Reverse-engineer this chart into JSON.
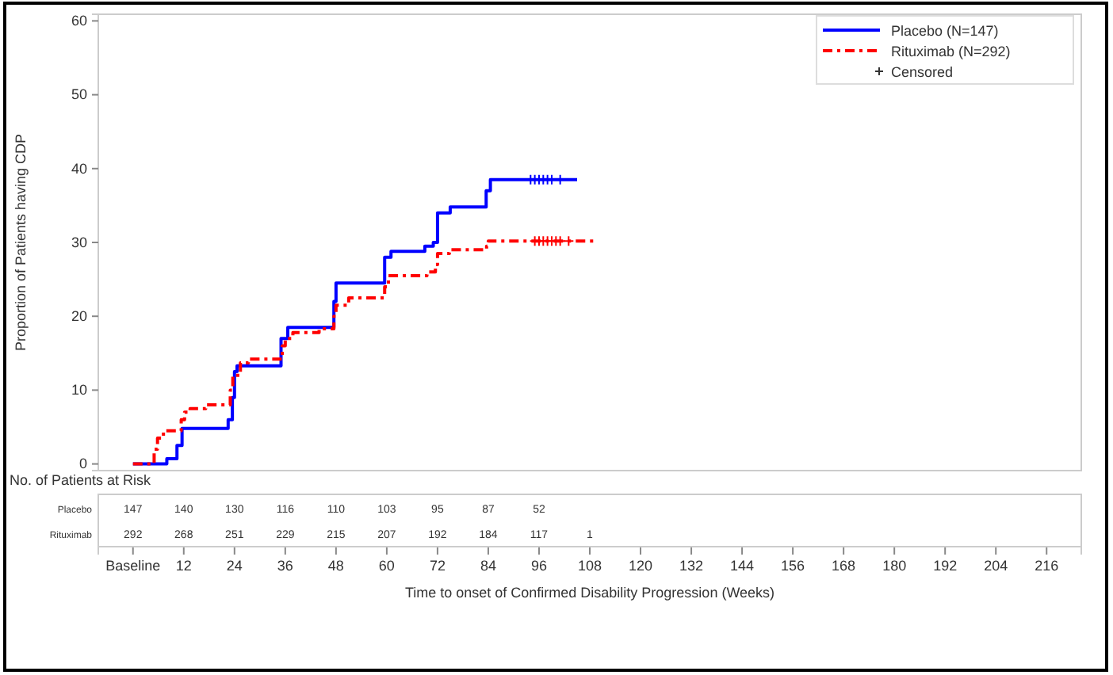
{
  "chart_data": [
    {
      "type": "step",
      "ylabel": "Proportion of Patients having CDP",
      "xlabel": "Time to onset of Confirmed Disability Progression (Weeks)",
      "xlim": [
        -8.2,
        224.2
      ],
      "xticks": [
        12,
        24,
        36,
        48,
        60,
        72,
        84,
        96,
        108,
        120,
        132,
        144,
        156,
        168,
        180,
        192,
        204,
        216
      ],
      "ylim": [
        -0.9,
        60.9
      ],
      "yticks": [
        0,
        10,
        20,
        30,
        40,
        50,
        60
      ],
      "legend": "top right",
      "tick_labels": "y",
      "series": [
        {
          "name": "Placebo (N=147)",
          "color": "#0000ff",
          "line_style": "solid",
          "x": [
            0,
            8,
            10.4,
            11.6,
            22.5,
            23.5,
            24,
            24.6,
            35,
            36.6,
            47.5,
            48,
            59.5,
            61,
            69,
            71,
            72,
            75,
            83.5,
            84.5,
            105
          ],
          "values": [
            0,
            0.7,
            2.5,
            4.8,
            6,
            9,
            12.5,
            13.3,
            17,
            18.5,
            22,
            24.5,
            28,
            28.8,
            29.5,
            30,
            34,
            34.8,
            37,
            38.5,
            38.5
          ]
        },
        {
          "name": "Rituximab (N=292)",
          "color": "#ff0000",
          "line_style": "dashed",
          "x": [
            0,
            5,
            5.8,
            7.2,
            11.4,
            12.2,
            13.5,
            17.2,
            23,
            23.6,
            25.4,
            27.3,
            35.3,
            36,
            37.8,
            44,
            47.5,
            48,
            51,
            59.5,
            60.4,
            69.5,
            71.5,
            72,
            74.8,
            83.6,
            84,
            109
          ],
          "values": [
            0,
            2,
            3.5,
            4.5,
            6,
            7,
            7.5,
            8,
            10,
            12,
            13.7,
            14.2,
            16,
            17,
            17.8,
            18.3,
            20,
            21.5,
            22.5,
            24,
            25.5,
            26,
            27,
            28.5,
            29,
            29.5,
            30.2,
            30.2
          ]
        },
        {
          "name": "Censored",
          "type": "scatter",
          "marker": "cross",
          "x": [
            94,
            95,
            96,
            97,
            98,
            99,
            101,
            95,
            96,
            97,
            98,
            99,
            100,
            101,
            103
          ],
          "values": [
            38.5,
            38.5,
            38.5,
            38.5,
            38.5,
            38.5,
            38.5,
            30.2,
            30.2,
            30.2,
            30.2,
            30.2,
            30.2,
            30.2,
            30.2
          ],
          "colors": [
            "#0000ff",
            "#0000ff",
            "#0000ff",
            "#0000ff",
            "#0000ff",
            "#0000ff",
            "#0000ff",
            "#ff0000",
            "#ff0000",
            "#ff0000",
            "#ff0000",
            "#ff0000",
            "#ff0000",
            "#ff0000",
            "#ff0000"
          ],
          "color": "#333333"
        }
      ]
    },
    {
      "type": "heatmap",
      "title": "No. of Patients at Risk",
      "categories": [
        "Baseline",
        "12",
        "24",
        "36",
        "48",
        "60",
        "72",
        "84",
        "96",
        "108",
        "120",
        "132",
        "144",
        "156",
        "168",
        "180",
        "192",
        "204",
        "216"
      ],
      "y_categories": [
        "Placebo",
        "Rituximab"
      ],
      "cells": [
        [
          147,
          140,
          130,
          116,
          110,
          103,
          95,
          87,
          52,
          null,
          null,
          null,
          null,
          null,
          null,
          null,
          null,
          null,
          null
        ],
        [
          292,
          268,
          251,
          229,
          215,
          207,
          192,
          184,
          117,
          1,
          null,
          null,
          null,
          null,
          null,
          null,
          null,
          null,
          null
        ]
      ],
      "data_labels": true
    }
  ]
}
